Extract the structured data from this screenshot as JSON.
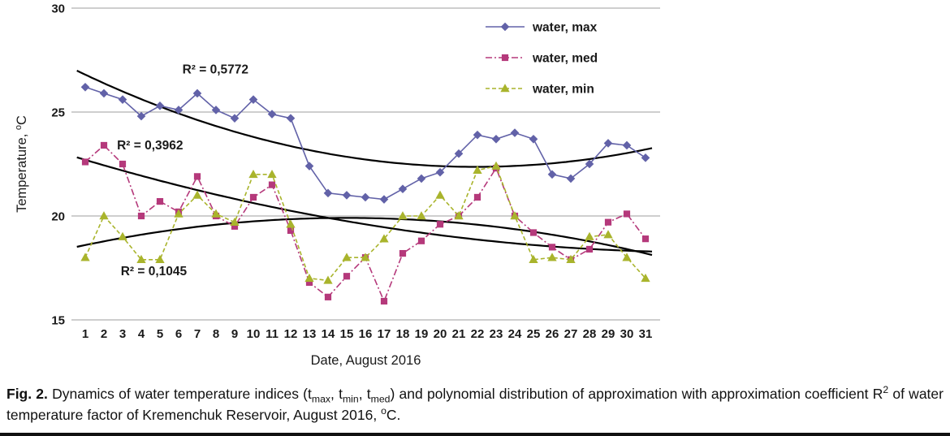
{
  "chart_data": {
    "type": "line",
    "title": "",
    "xlabel": "Date, August 2016",
    "ylabel_segments": [
      {
        "t": "Temperature, "
      },
      {
        "t": "o",
        "sup": true
      },
      {
        "t": "C"
      }
    ],
    "x": [
      1,
      2,
      3,
      4,
      5,
      6,
      7,
      8,
      9,
      10,
      11,
      12,
      13,
      14,
      15,
      16,
      17,
      18,
      19,
      20,
      21,
      22,
      23,
      24,
      25,
      26,
      27,
      28,
      29,
      30,
      31
    ],
    "ylim": [
      15,
      30
    ],
    "yticks": [
      15,
      20,
      25,
      30
    ],
    "grid": "horizontal",
    "legend_position": "top-right-inside",
    "series": [
      {
        "name": "water, max",
        "color": "#6262A8",
        "marker": "diamond",
        "dash": "solid",
        "values": [
          26.2,
          25.9,
          25.6,
          24.8,
          25.3,
          25.1,
          25.9,
          25.1,
          24.7,
          25.6,
          24.9,
          24.7,
          22.4,
          21.1,
          21.0,
          20.9,
          20.8,
          21.3,
          21.8,
          22.1,
          23.0,
          23.9,
          23.7,
          24.0,
          23.7,
          22.0,
          21.8,
          22.5,
          23.5,
          23.4,
          22.8
        ]
      },
      {
        "name": "water, med",
        "color": "#B5397B",
        "marker": "square",
        "dash": "dashdot",
        "values": [
          22.6,
          23.4,
          22.5,
          20.0,
          20.7,
          20.2,
          21.9,
          20.0,
          19.5,
          20.9,
          21.5,
          19.3,
          16.8,
          16.1,
          17.1,
          18.0,
          15.9,
          18.2,
          18.8,
          19.6,
          20.0,
          20.9,
          22.3,
          20.0,
          19.2,
          18.5,
          17.9,
          18.4,
          19.7,
          20.1,
          18.9
        ]
      },
      {
        "name": "water, min",
        "color": "#A9B42C",
        "marker": "triangle",
        "dash": "dashed",
        "values": [
          18.0,
          20.0,
          19.0,
          17.9,
          17.9,
          20.1,
          21.0,
          20.1,
          19.7,
          22.0,
          22.0,
          19.6,
          17.0,
          16.9,
          18.0,
          18.0,
          18.9,
          20.0,
          20.0,
          21.0,
          20.0,
          22.2,
          22.4,
          20.0,
          17.9,
          18.0,
          17.9,
          19.0,
          19.1,
          18.0,
          17.0
        ]
      }
    ],
    "trendlines": [
      {
        "label": "R² = 0,5772",
        "coeffs": [
          0.010143,
          -0.4446,
          27.2345
        ],
        "label_pos": {
          "x": 6.2,
          "y": 26.85
        }
      },
      {
        "label": "R² = 0,3962",
        "coeffs": [
          0.004,
          -0.2747,
          22.9707
        ],
        "label_pos": {
          "x": 2.7,
          "y": 23.2
        }
      },
      {
        "label": "R² = 0,1045",
        "coeffs": [
          -0.006667,
          0.2,
          18.4067
        ],
        "label_pos": {
          "x": 2.9,
          "y": 17.15
        }
      }
    ],
    "colors": {
      "grid": "#9C9C9C",
      "trend": "#000000",
      "text": "#1a1a1a"
    }
  },
  "caption": {
    "segments": [
      {
        "t": "Fig. 2.",
        "b": true
      },
      {
        "t": " Dynamics of water temperature indices (t"
      },
      {
        "t": "max",
        "sub": true
      },
      {
        "t": ", t"
      },
      {
        "t": "min",
        "sub": true
      },
      {
        "t": ", t"
      },
      {
        "t": "med",
        "sub": true
      },
      {
        "t": ") and polynomial distribution of approximation with approximation coefficient R"
      },
      {
        "t": "2",
        "sup": true
      },
      {
        "t": " of water temperature factor of Kremenchuk Reservoir, August 2016, "
      },
      {
        "t": "o",
        "sup": true
      },
      {
        "t": "C."
      }
    ]
  }
}
